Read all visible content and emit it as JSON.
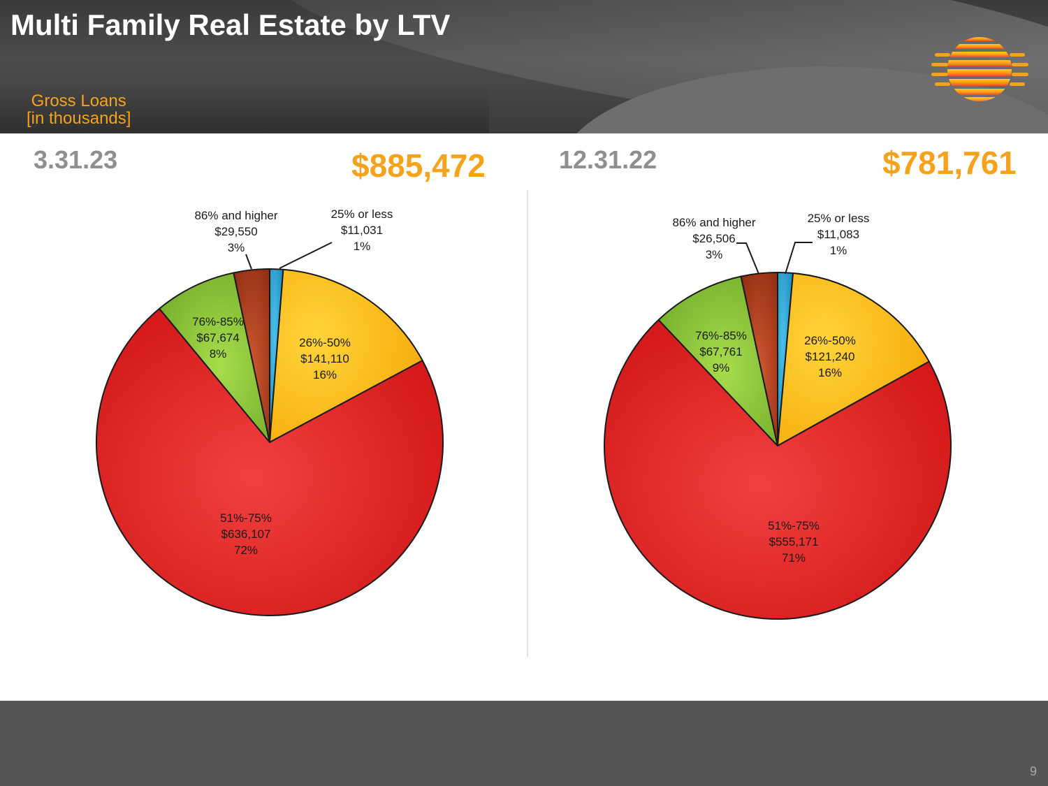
{
  "header": {
    "title": "Multi Family Real Estate by LTV",
    "subtitle_line1": "Gross Loans",
    "subtitle_line2": "[in thousands]"
  },
  "footer": {
    "page_number": "9"
  },
  "colors": {
    "accent": "#f5a21c",
    "date_gray": "#8f8f8f",
    "header_bg": "#3d3d3d",
    "footer_bg": "#555555"
  },
  "chart_data": [
    {
      "type": "pie",
      "title": "3.31.23",
      "total": "$885,472",
      "slices": [
        {
          "name": "25% or less",
          "amount": "$11,031",
          "value": 11031,
          "percent": "1%",
          "color": "#1e9fd0"
        },
        {
          "name": "26%-50%",
          "amount": "$141,110",
          "value": 141110,
          "percent": "16%",
          "color": "#ffc000"
        },
        {
          "name": "51%-75%",
          "amount": "$636,107",
          "value": 636107,
          "percent": "72%",
          "color": "#e31c1c"
        },
        {
          "name": "76%-85%",
          "amount": "$67,674",
          "value": 67674,
          "percent": "8%",
          "color": "#8dc63f"
        },
        {
          "name": "86% and higher",
          "amount": "$29,550",
          "value": 29550,
          "percent": "3%",
          "color": "#b5381a"
        }
      ]
    },
    {
      "type": "pie",
      "title": "12.31.22",
      "total": "$781,761",
      "slices": [
        {
          "name": "25% or less",
          "amount": "$11,083",
          "value": 11083,
          "percent": "1%",
          "color": "#1e9fd0"
        },
        {
          "name": "26%-50%",
          "amount": "$121,240",
          "value": 121240,
          "percent": "16%",
          "color": "#ffc000"
        },
        {
          "name": "51%-75%",
          "amount": "$555,171",
          "value": 555171,
          "percent": "71%",
          "color": "#e31c1c"
        },
        {
          "name": "76%-85%",
          "amount": "$67,761",
          "value": 67761,
          "percent": "9%",
          "color": "#8dc63f"
        },
        {
          "name": "86% and higher",
          "amount": "$26,506",
          "value": 26506,
          "percent": "3%",
          "color": "#b5381a"
        }
      ]
    }
  ]
}
